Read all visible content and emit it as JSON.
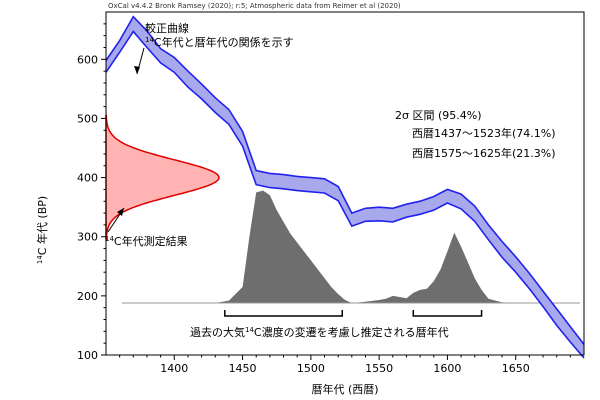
{
  "chart_data": {
    "type": "area",
    "credit": "OxCal v4.4.2 Bronk Ramsey (2020); r:5; Atmospheric data from Reimer et al (2020)",
    "xlabel": "暦年代 (西暦)",
    "ylabel_sup": "14",
    "ylabel_rest": "C 年代 (BP)",
    "xlim": [
      1350,
      1700
    ],
    "ylim": [
      100,
      680
    ],
    "xticks": [
      1400,
      1450,
      1500,
      1550,
      1600,
      1650
    ],
    "yticks": [
      100,
      200,
      300,
      400,
      500,
      600
    ],
    "colors": {
      "curve_fill": "#a8a8ec",
      "curve_edge": "#2222ee",
      "measurement_fill": "#ffb3b3",
      "measurement_edge": "#dd0000",
      "posterior": "#6e6e6e"
    },
    "calibration_curve": {
      "x": [
        1350,
        1360,
        1370,
        1380,
        1390,
        1400,
        1410,
        1420,
        1430,
        1440,
        1450,
        1460,
        1470,
        1480,
        1490,
        1500,
        1510,
        1520,
        1530,
        1540,
        1550,
        1560,
        1570,
        1580,
        1590,
        1600,
        1610,
        1620,
        1630,
        1640,
        1650,
        1660,
        1670,
        1680,
        1690,
        1700
      ],
      "upper": [
        598,
        632,
        672,
        648,
        618,
        603,
        580,
        558,
        535,
        515,
        478,
        412,
        407,
        405,
        402,
        400,
        398,
        385,
        340,
        348,
        350,
        348,
        355,
        360,
        368,
        380,
        372,
        352,
        320,
        292,
        266,
        238,
        208,
        178,
        148,
        118
      ],
      "lower": [
        578,
        612,
        647,
        620,
        594,
        578,
        553,
        533,
        510,
        490,
        453,
        388,
        383,
        381,
        378,
        376,
        374,
        361,
        318,
        326,
        327,
        325,
        333,
        338,
        345,
        357,
        347,
        326,
        295,
        265,
        240,
        212,
        182,
        150,
        122,
        95
      ]
    },
    "measurement": {
      "mean": 400,
      "sd": 30
    },
    "posterior": {
      "baseline": 188,
      "x": [
        1345,
        1430,
        1440,
        1450,
        1455,
        1460,
        1465,
        1470,
        1475,
        1480,
        1485,
        1490,
        1495,
        1500,
        1505,
        1510,
        1515,
        1520,
        1525,
        1530,
        1540,
        1550,
        1555,
        1560,
        1565,
        1570,
        1575,
        1580,
        1585,
        1590,
        1595,
        1600,
        1605,
        1610,
        1615,
        1620,
        1625,
        1630,
        1640,
        1700
      ],
      "y": [
        188,
        188,
        192,
        215,
        300,
        375,
        378,
        370,
        345,
        325,
        305,
        290,
        275,
        260,
        245,
        230,
        215,
        203,
        193,
        188,
        190,
        193,
        195,
        200,
        198,
        196,
        205,
        210,
        212,
        225,
        245,
        275,
        307,
        283,
        257,
        230,
        210,
        195,
        189,
        188
      ]
    },
    "annotations": {
      "curve_title": "較正曲線",
      "curve_sub_sup": "14",
      "curve_sub_rest": "C年代と暦年代の関係を示す",
      "measure_sup": "14",
      "measure_rest": "C年代測定結果",
      "sigma_title": "2σ 区間 (95.4%)",
      "range1": "西暦1437～1523年(74.1%)",
      "range2": "西暦1575～1625年(21.3%)",
      "bracket_pre": "過去の大気",
      "bracket_sup": "14",
      "bracket_post": "C濃度の変遷を考慮し推定される暦年代"
    }
  }
}
